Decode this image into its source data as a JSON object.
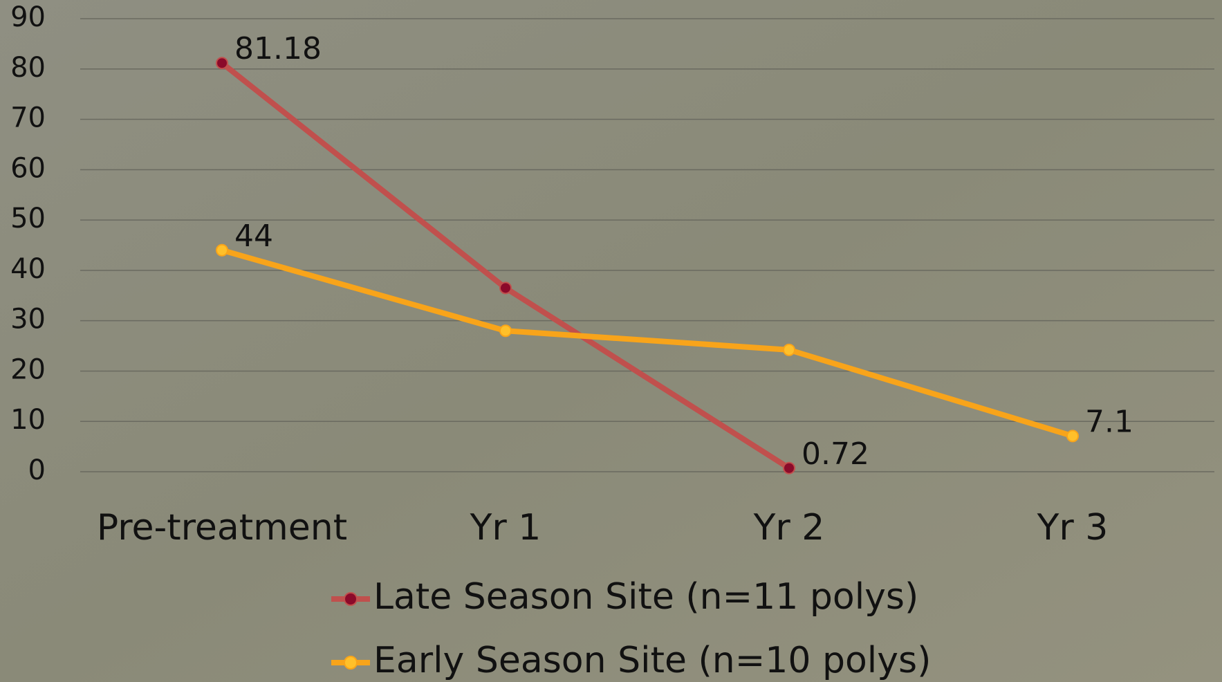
{
  "chart_data": {
    "type": "line",
    "categories": [
      "Pre-treatment",
      "Yr 1",
      "Yr 2",
      "Yr 3"
    ],
    "series": [
      {
        "name": "Late Season Site (n=11 polys)",
        "color": "#c0504d",
        "marker_color": "#8b0a2a",
        "values": [
          81.18,
          36.5,
          0.72,
          null
        ],
        "value_labels": [
          "81.18",
          null,
          "0.72",
          null
        ]
      },
      {
        "name": "Early Season Site (n=10 polys)",
        "color": "#f8a41a",
        "marker_color": "#ffc02a",
        "values": [
          44,
          28,
          24.2,
          7.1
        ],
        "value_labels": [
          "44",
          null,
          null,
          "7.1"
        ]
      }
    ],
    "ylim": [
      0,
      90
    ],
    "yticks": [
      0,
      10,
      20,
      30,
      40,
      50,
      60,
      70,
      80,
      90
    ],
    "grid": true,
    "legend": "bottom"
  }
}
